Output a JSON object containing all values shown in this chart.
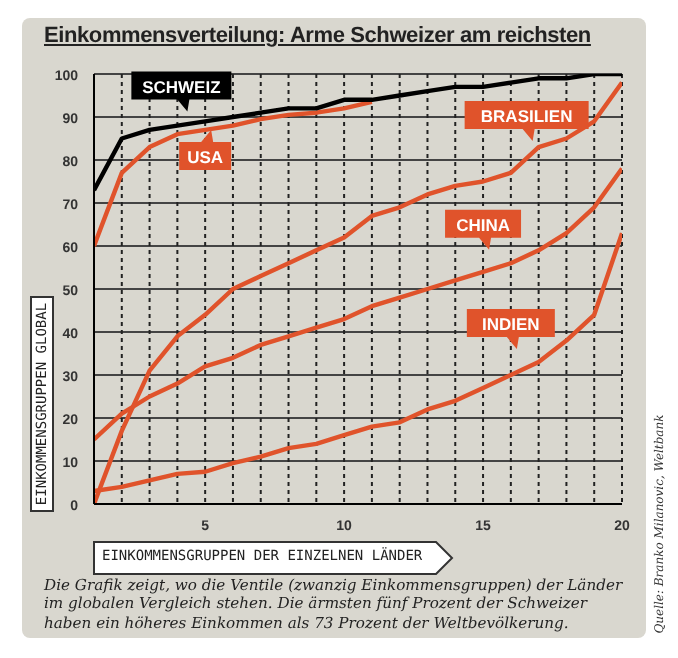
{
  "chart_data": {
    "type": "line",
    "title": "Einkommensverteilung: Arme Schweizer am reichsten",
    "xlabel": "EINKOMMENSGRUPPEN DER EINZELNEN LÄNDER",
    "ylabel": "EINKOMMENSGRUPPEN GLOBAL",
    "x": [
      1,
      2,
      3,
      4,
      5,
      6,
      7,
      8,
      9,
      10,
      11,
      12,
      13,
      14,
      15,
      16,
      17,
      18,
      19,
      20
    ],
    "series": [
      {
        "name": "USA",
        "color": "#e0532b",
        "values": [
          60,
          77,
          83,
          86,
          87,
          88,
          89.5,
          90.5,
          91,
          92,
          93.5,
          null,
          null,
          null,
          null,
          null,
          null,
          null,
          null,
          null
        ]
      },
      {
        "name": "SCHWEIZ",
        "color": "#000000",
        "values": [
          73,
          85,
          87,
          88,
          89,
          90,
          91,
          92,
          92,
          94,
          94,
          95,
          96,
          97,
          97,
          98,
          99,
          99,
          100,
          100
        ]
      },
      {
        "name": "BRASILIEN",
        "color": "#e0532b",
        "values": [
          0,
          17,
          31,
          39,
          44,
          50,
          53,
          56,
          59,
          62,
          67,
          69,
          72,
          74,
          75,
          77,
          83,
          85,
          89,
          98
        ]
      },
      {
        "name": "CHINA",
        "color": "#e0532b",
        "values": [
          15,
          21,
          25,
          28,
          32,
          34,
          37,
          39,
          41,
          43,
          46,
          48,
          50,
          52,
          54,
          56,
          59,
          63,
          69,
          78
        ]
      },
      {
        "name": "INDIEN",
        "color": "#e0532b",
        "values": [
          3,
          4,
          5.5,
          7,
          7.5,
          9.5,
          11,
          13,
          14,
          16,
          18,
          19,
          22,
          24,
          27,
          30,
          33,
          38,
          44,
          63
        ]
      }
    ],
    "xlim": [
      1,
      20
    ],
    "xticks": [
      {
        "value": 1,
        "label": null
      },
      {
        "value": 2,
        "label": null
      },
      {
        "value": 3,
        "label": null
      },
      {
        "value": 4,
        "label": null
      },
      5,
      {
        "value": 6,
        "label": null
      },
      {
        "value": 7,
        "label": null
      },
      {
        "value": 8,
        "label": null
      },
      {
        "value": 9,
        "label": null
      },
      10,
      {
        "value": 11,
        "label": null
      },
      {
        "value": 12,
        "label": null
      },
      {
        "value": 13,
        "label": null
      },
      {
        "value": 14,
        "label": null
      },
      15,
      {
        "value": 16,
        "label": null
      },
      {
        "value": 17,
        "label": null
      },
      {
        "value": 18,
        "label": null
      },
      {
        "value": 19,
        "label": null
      },
      20
    ],
    "ylim": [
      0,
      100
    ],
    "yticks": [
      0,
      10,
      20,
      30,
      40,
      50,
      60,
      70,
      80,
      90,
      100
    ],
    "grid": true,
    "legend": false,
    "marker": "none",
    "line_style": "solid",
    "annotations": [
      "Die Grafik zeigt, wo die Ventile (zwanzig Einkommensgruppen) der Länder im globalen Vergleich stehen. Die ärmsten fünf Prozent der Schweizer haben ein höheres Einkommen als 73 Prozent der Weltbevölkerung.",
      "Quelle: Branko Milanovic, Weltbank"
    ]
  }
}
